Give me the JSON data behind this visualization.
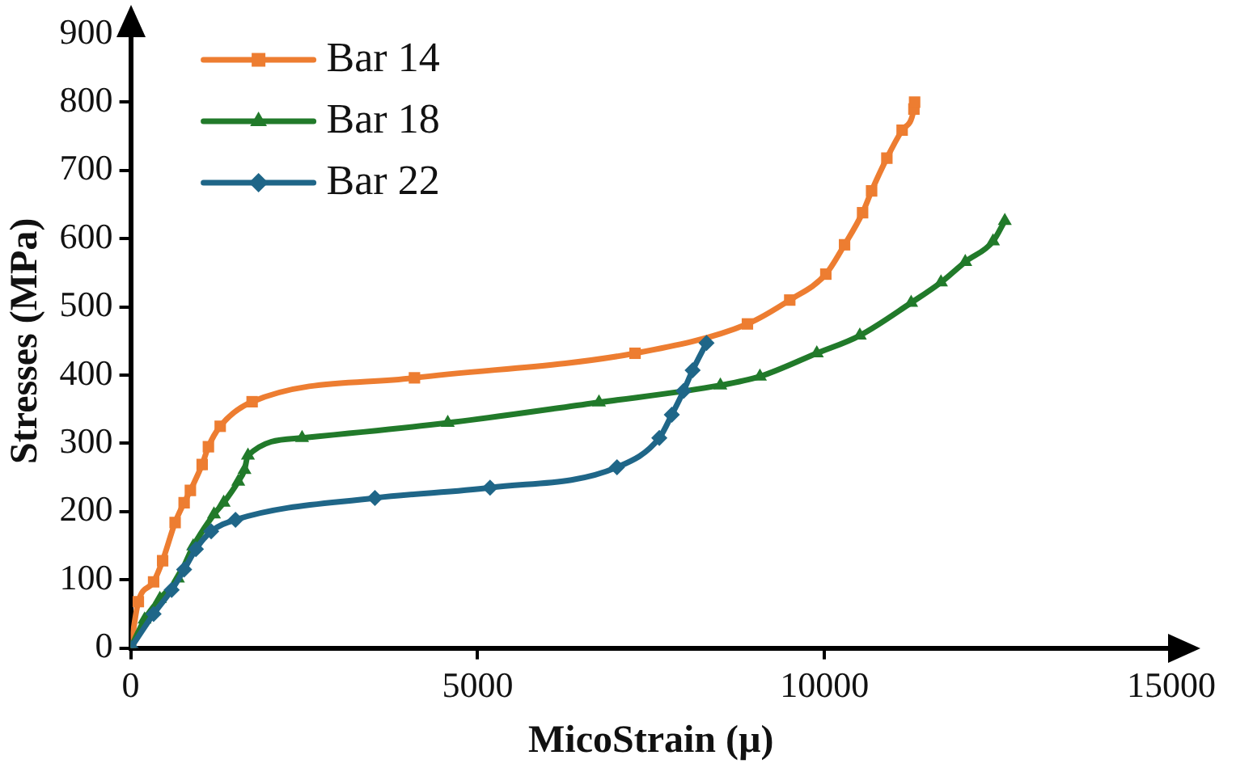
{
  "chart_data": {
    "type": "line",
    "xlabel": "MicoStrain (µ)",
    "ylabel": "Stresses (MPa)",
    "xlim": [
      0,
      15000
    ],
    "xticks": [
      0,
      5000,
      10000,
      15000
    ],
    "ylim": [
      0,
      900
    ],
    "yticks": [
      0,
      100,
      200,
      300,
      400,
      500,
      600,
      700,
      800,
      900
    ],
    "grid": false,
    "legend": "top left",
    "line_style": "solid",
    "series": [
      {
        "name": "Bar 14",
        "color": "#ed7d31",
        "marker": "square",
        "x": [
          0,
          110,
          330,
          460,
          640,
          770,
          860,
          1030,
          1120,
          1290,
          1750,
          4090,
          7270,
          8890,
          9500,
          10020,
          10290,
          10550,
          10680,
          10900,
          11120,
          11290,
          11300
        ],
        "values": [
          0,
          68,
          97,
          128,
          184,
          213,
          231,
          269,
          295,
          325,
          361,
          396,
          432,
          475,
          510,
          548,
          591,
          638,
          670,
          718,
          759,
          790,
          800
        ]
      },
      {
        "name": "Bar 18",
        "color": "#217a2a",
        "marker": "triangle",
        "x": [
          0,
          200,
          420,
          680,
          900,
          1200,
          1340,
          1550,
          1640,
          1690,
          2470,
          4570,
          6750,
          8500,
          9070,
          9890,
          10510,
          11250,
          11680,
          12030,
          12430,
          12600
        ],
        "values": [
          0,
          42,
          72,
          102,
          149,
          196,
          213,
          244,
          261,
          282,
          308,
          330,
          360,
          385,
          398,
          432,
          458,
          506,
          536,
          566,
          596,
          626
        ]
      },
      {
        "name": "Bar 22",
        "color": "#1f6688",
        "marker": "diamond",
        "x": [
          0,
          330,
          590,
          770,
          940,
          1160,
          1510,
          3520,
          5180,
          7010,
          7620,
          7800,
          7970,
          8100,
          8300
        ],
        "values": [
          0,
          50,
          85,
          115,
          145,
          171,
          188,
          220,
          235,
          265,
          308,
          342,
          377,
          407,
          447
        ]
      }
    ]
  }
}
